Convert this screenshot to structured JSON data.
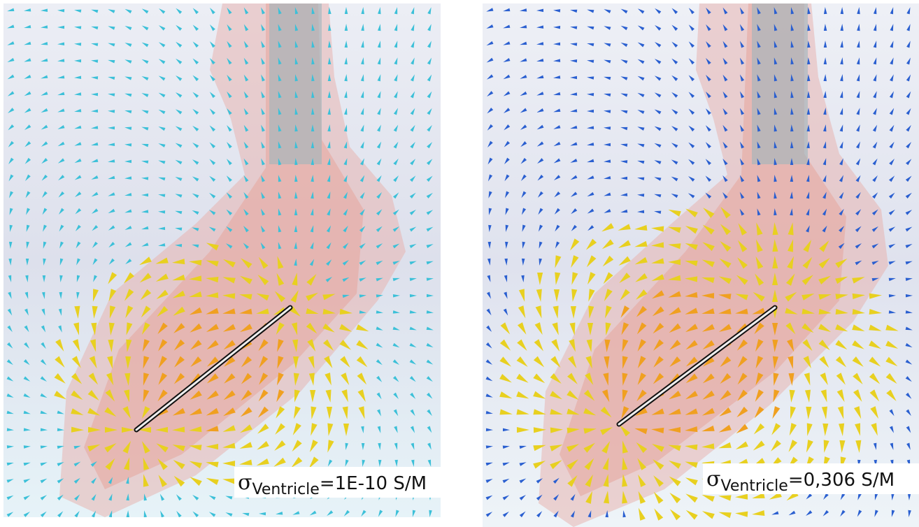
{
  "panels": [
    {
      "label": {
        "symbol": "σ",
        "subscript": "Ventricle",
        "text": "=1E-10 S/M"
      }
    },
    {
      "label": {
        "symbol": "σ",
        "subscript": "Ventricle",
        "text": "=0,306 S/M"
      }
    }
  ]
}
